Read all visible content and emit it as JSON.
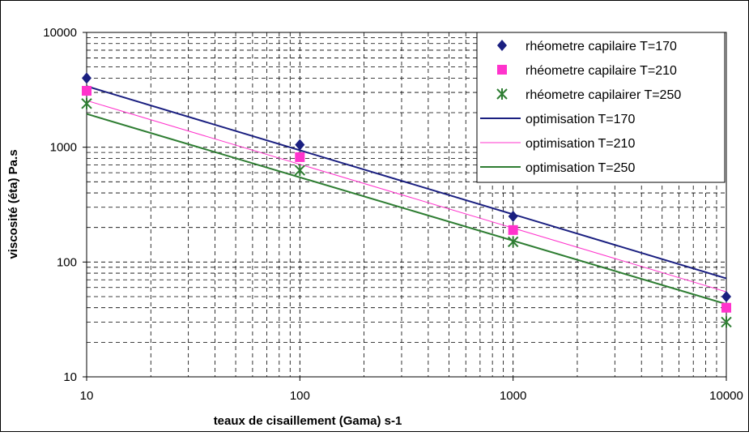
{
  "chart_data": {
    "type": "scatter",
    "x_scale": "log",
    "y_scale": "log",
    "xlim": [
      10,
      10000
    ],
    "ylim": [
      10,
      10000
    ],
    "grid": true,
    "legend_position": "top-right",
    "xlabel": "teaux de cisaillement  (Gama) s-1",
    "ylabel": "viscosité (éta) Pa.s",
    "x_ticks": [
      "10",
      "100",
      "1000",
      "10000"
    ],
    "y_ticks": [
      "10",
      "100",
      "1000",
      "10000"
    ],
    "series": [
      {
        "name": "rhéometre capilaire T=170",
        "kind": "markers",
        "marker": "diamond",
        "color": "#1a1f80",
        "points": [
          [
            10,
            4000
          ],
          [
            100,
            1050
          ],
          [
            1000,
            250
          ],
          [
            10000,
            50
          ]
        ]
      },
      {
        "name": "rhéometre capilaire T=210",
        "kind": "markers",
        "marker": "square",
        "color": "#ff33cc",
        "points": [
          [
            10,
            3100
          ],
          [
            100,
            820
          ],
          [
            1000,
            190
          ],
          [
            10000,
            40
          ]
        ]
      },
      {
        "name": "rhéometre capilairer T=250",
        "kind": "markers",
        "marker": "asterisk",
        "color": "#2e7d32",
        "points": [
          [
            10,
            2400
          ],
          [
            100,
            630
          ],
          [
            1000,
            150
          ],
          [
            10000,
            30
          ]
        ]
      },
      {
        "name": "optimisation T=170",
        "kind": "line",
        "color": "#1a1f80",
        "width": 2,
        "points": [
          [
            10,
            3400
          ],
          [
            10000,
            72
          ]
        ]
      },
      {
        "name": "optimisation T=210",
        "kind": "line",
        "color": "#ff33cc",
        "width": 1,
        "points": [
          [
            10,
            2550
          ],
          [
            10000,
            55
          ]
        ]
      },
      {
        "name": "optimisation T=250",
        "kind": "line",
        "color": "#2e7d32",
        "width": 2,
        "points": [
          [
            10,
            1950
          ],
          [
            10000,
            43
          ]
        ]
      }
    ]
  }
}
